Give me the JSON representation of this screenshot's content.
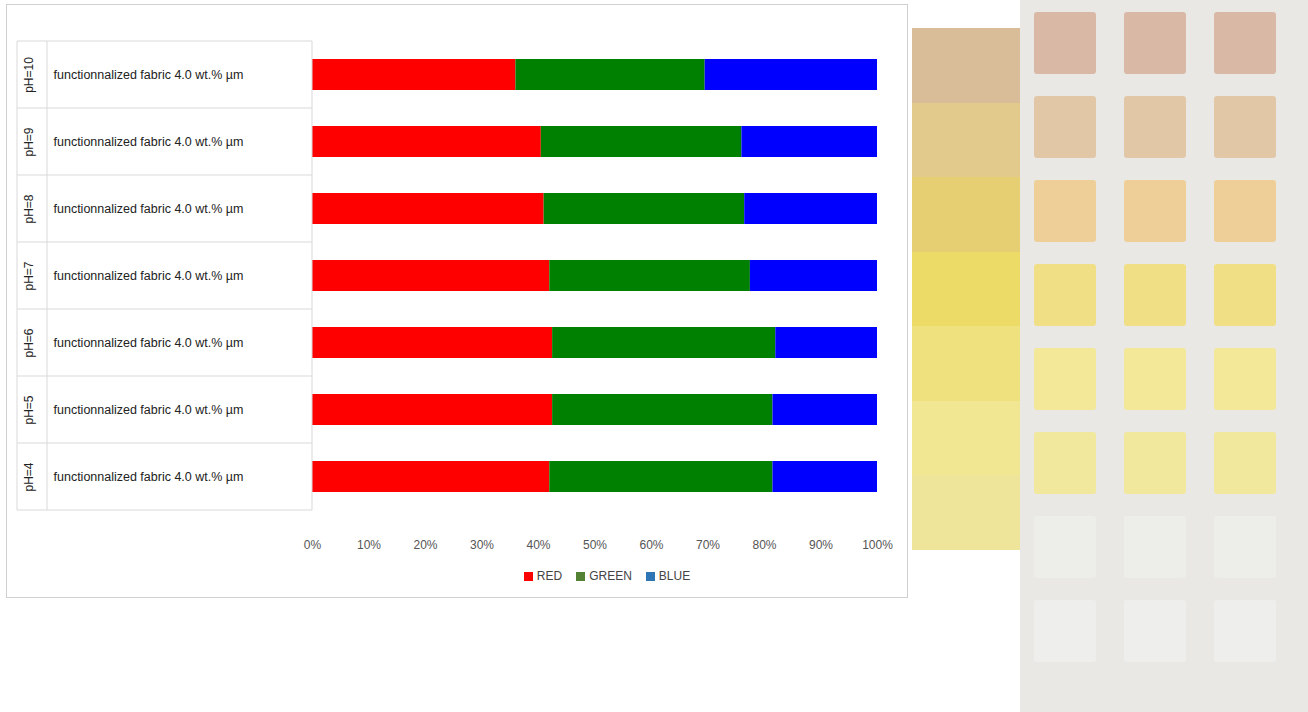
{
  "chart_data": {
    "type": "bar",
    "orientation": "horizontal",
    "stacked": true,
    "categories": [
      "pH=4",
      "pH=5",
      "pH=6",
      "pH=7",
      "pH=8",
      "pH=9",
      "pH=10"
    ],
    "row_labels": [
      "functionnalized fabric 4.0 wt.% µm",
      "functionnalized fabric 4.0 wt.% µm",
      "functionnalized fabric 4.0 wt.% µm",
      "functionnalized fabric 4.0 wt.% µm",
      "functionnalized fabric 4.0 wt.% µm",
      "functionnalized fabric 4.0 wt.% µm",
      "functionnalized fabric 4.0 wt.% µm"
    ],
    "series": [
      {
        "name": "RED",
        "color": "#ff0000",
        "values": [
          42,
          42.5,
          42.5,
          42,
          41,
          40.5,
          36
        ]
      },
      {
        "name": "GREEN",
        "color": "#548235",
        "values": [
          39.5,
          39,
          39.5,
          35.5,
          35.5,
          35.5,
          33.5
        ]
      },
      {
        "name": "BLUE",
        "color": "#2e75b6",
        "values": [
          18.5,
          18.5,
          18,
          22.5,
          23.5,
          24,
          30.5
        ]
      }
    ],
    "xlim": [
      0,
      100
    ],
    "xticks": [
      {
        "value": 0,
        "label": "0%"
      },
      {
        "value": 10,
        "label": "10%"
      },
      {
        "value": 20,
        "label": "20%"
      },
      {
        "value": 30,
        "label": "30%"
      },
      {
        "value": 40,
        "label": "40%"
      },
      {
        "value": 50,
        "label": "50%"
      },
      {
        "value": 60,
        "label": "60%"
      },
      {
        "value": 70,
        "label": "70%"
      },
      {
        "value": 80,
        "label": "80%"
      },
      {
        "value": 90,
        "label": "90%"
      },
      {
        "value": 100,
        "label": "100%"
      }
    ],
    "legend": "bottom",
    "grid": false
  }
}
